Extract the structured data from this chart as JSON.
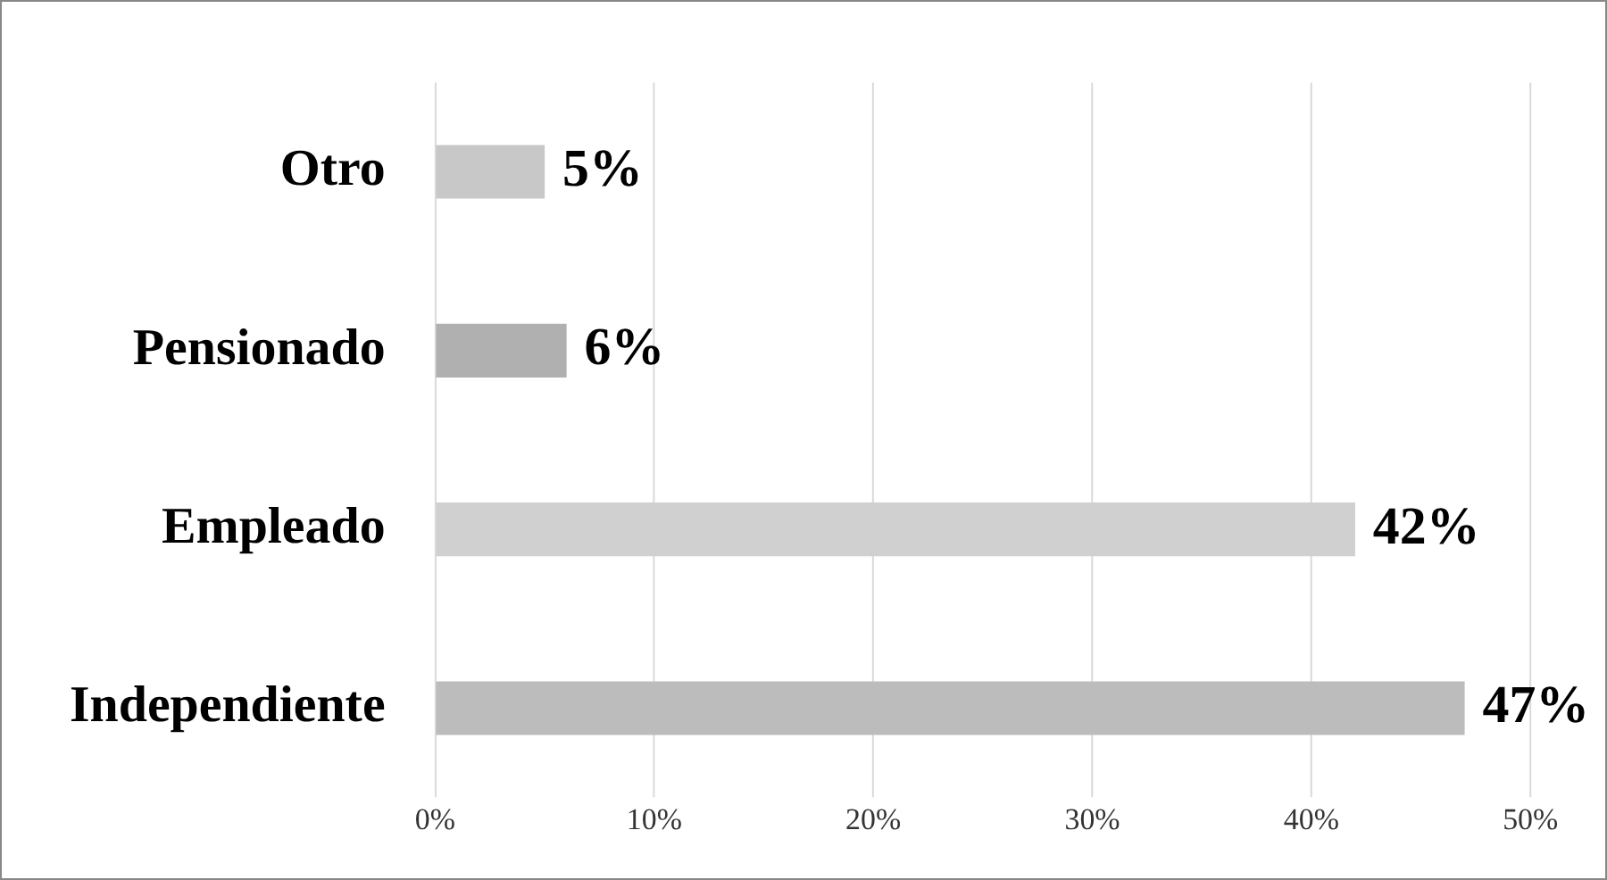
{
  "chart_data": {
    "type": "bar",
    "orientation": "horizontal",
    "categories": [
      "Otro",
      "Pensionado",
      "Empleado",
      "Independiente"
    ],
    "values": [
      5,
      6,
      42,
      47
    ],
    "colors": [
      "#c8c8c8",
      "#b0b0b0",
      "#d0d0d0",
      "#bcbcbc"
    ],
    "value_labels": [
      "5%",
      "6%",
      "42%",
      "47%"
    ],
    "xlim": [
      0,
      50
    ],
    "xticks": [
      {
        "value": 0,
        "label": "0%"
      },
      {
        "value": 10,
        "label": "10%"
      },
      {
        "value": 20,
        "label": "20%"
      },
      {
        "value": 30,
        "label": "30%"
      },
      {
        "value": 40,
        "label": "40%"
      },
      {
        "value": 50,
        "label": "50%"
      }
    ],
    "grid": "x",
    "legend": false
  }
}
